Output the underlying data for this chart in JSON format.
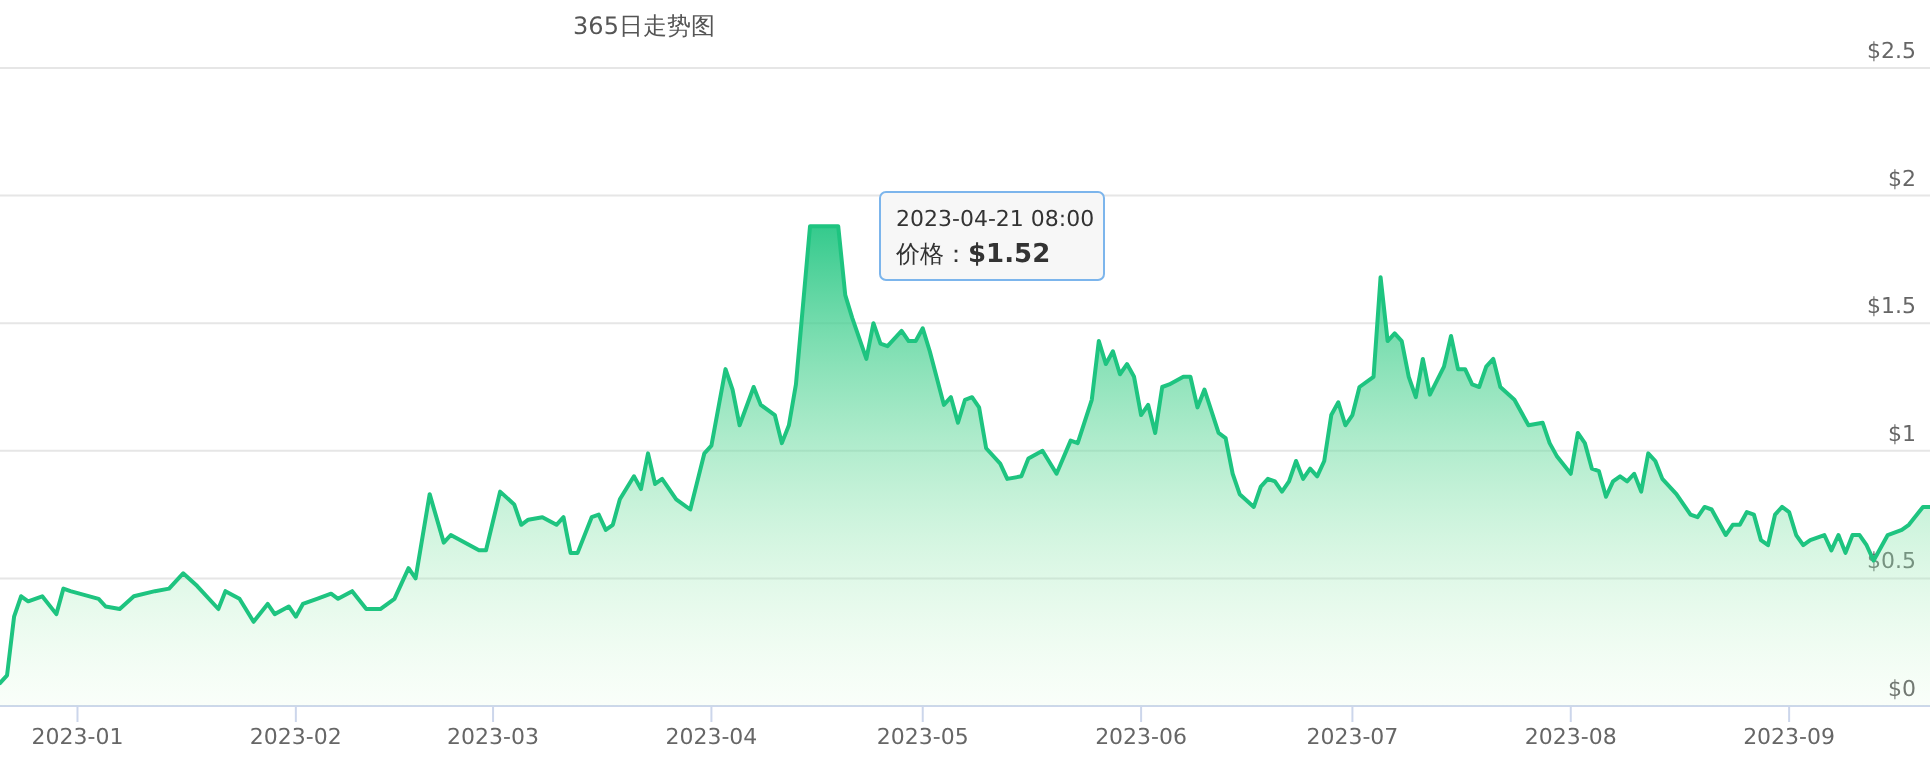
{
  "chart_data": {
    "type": "area",
    "title": "365日走势图",
    "color": "#1ec480",
    "grid": "y",
    "marker": "none",
    "line_style": "solid",
    "xlim": [
      "2022-12-21",
      "2023-09-21"
    ],
    "ylim": [
      0,
      2.5
    ],
    "yticks": [
      {
        "value": 0,
        "label": "$0"
      },
      {
        "value": 0.5,
        "label": "$0.5"
      },
      {
        "value": 1,
        "label": "$1"
      },
      {
        "value": 1.5,
        "label": "$1.5"
      },
      {
        "value": 2,
        "label": "$2"
      },
      {
        "value": 2.5,
        "label": "$2.5"
      }
    ],
    "xticks": [
      {
        "value": "2023-01-01",
        "label": "2023-01"
      },
      {
        "value": "2023-02-01",
        "label": "2023-02"
      },
      {
        "value": "2023-03-01",
        "label": "2023-03"
      },
      {
        "value": "2023-04-01",
        "label": "2023-04"
      },
      {
        "value": "2023-05-01",
        "label": "2023-05"
      },
      {
        "value": "2023-06-01",
        "label": "2023-06"
      },
      {
        "value": "2023-07-01",
        "label": "2023-07"
      },
      {
        "value": "2023-08-01",
        "label": "2023-08"
      },
      {
        "value": "2023-09-01",
        "label": "2023-09"
      }
    ],
    "annotations": [
      "2023-04-21 08:00",
      "价格：**$1.52**"
    ],
    "x": [
      "2022-12-21",
      "2022-12-22",
      "2022-12-23",
      "2022-12-24",
      "2022-12-25",
      "2022-12-27",
      "2022-12-29",
      "2022-12-30",
      "2022-12-31",
      "2023-01-04",
      "2023-01-05",
      "2023-01-07",
      "2023-01-09",
      "2023-01-12",
      "2023-01-14",
      "2023-01-16",
      "2023-01-18",
      "2023-01-21",
      "2023-01-22",
      "2023-01-24",
      "2023-01-26",
      "2023-01-28",
      "2023-01-29",
      "2023-01-31",
      "2023-02-01",
      "2023-02-02",
      "2023-02-04",
      "2023-02-06",
      "2023-02-07",
      "2023-02-09",
      "2023-02-11",
      "2023-02-13",
      "2023-02-15",
      "2023-02-17",
      "2023-02-18",
      "2023-02-20",
      "2023-02-22",
      "2023-02-23",
      "2023-02-27",
      "2023-02-28",
      "2023-03-02",
      "2023-03-04",
      "2023-03-05",
      "2023-03-06",
      "2023-03-08",
      "2023-03-10",
      "2023-03-11",
      "2023-03-12",
      "2023-03-13",
      "2023-03-15",
      "2023-03-16",
      "2023-03-17",
      "2023-03-18",
      "2023-03-19",
      "2023-03-21",
      "2023-03-22",
      "2023-03-23",
      "2023-03-24",
      "2023-03-25",
      "2023-03-27",
      "2023-03-29",
      "2023-03-31",
      "2023-04-01",
      "2023-04-03",
      "2023-04-04",
      "2023-04-05",
      "2023-04-07",
      "2023-04-08",
      "2023-04-10",
      "2023-04-11",
      "2023-04-12",
      "2023-04-13",
      "2023-04-15",
      "2023-04-19",
      "2023-04-20",
      "2023-04-21",
      "2023-04-23",
      "2023-04-24",
      "2023-04-25",
      "2023-04-26",
      "2023-04-28",
      "2023-04-29",
      "2023-04-30",
      "2023-05-01",
      "2023-05-02",
      "2023-05-04",
      "2023-05-05",
      "2023-05-06",
      "2023-05-07",
      "2023-05-08",
      "2023-05-09",
      "2023-05-10",
      "2023-05-12",
      "2023-05-13",
      "2023-05-15",
      "2023-05-16",
      "2023-05-18",
      "2023-05-20",
      "2023-05-22",
      "2023-05-23",
      "2023-05-25",
      "2023-05-26",
      "2023-05-27",
      "2023-05-28",
      "2023-05-29",
      "2023-05-30",
      "2023-05-31",
      "2023-06-01",
      "2023-06-02",
      "2023-06-03",
      "2023-06-04",
      "2023-06-05",
      "2023-06-07",
      "2023-06-08",
      "2023-06-09",
      "2023-06-10",
      "2023-06-12",
      "2023-06-13",
      "2023-06-14",
      "2023-06-15",
      "2023-06-17",
      "2023-06-18",
      "2023-06-19",
      "2023-06-20",
      "2023-06-21",
      "2023-06-22",
      "2023-06-23",
      "2023-06-24",
      "2023-06-25",
      "2023-06-26",
      "2023-06-27",
      "2023-06-28",
      "2023-06-29",
      "2023-06-30",
      "2023-07-01",
      "2023-07-02",
      "2023-07-04",
      "2023-07-05",
      "2023-07-06",
      "2023-07-07",
      "2023-07-08",
      "2023-07-09",
      "2023-07-10",
      "2023-07-11",
      "2023-07-12",
      "2023-07-14",
      "2023-07-15",
      "2023-07-16",
      "2023-07-17",
      "2023-07-18",
      "2023-07-19",
      "2023-07-20",
      "2023-07-21",
      "2023-07-22",
      "2023-07-24",
      "2023-07-26",
      "2023-07-28",
      "2023-07-29",
      "2023-07-30",
      "2023-08-01",
      "2023-08-02",
      "2023-08-03",
      "2023-08-04",
      "2023-08-05",
      "2023-08-06",
      "2023-08-07",
      "2023-08-08",
      "2023-08-09",
      "2023-08-10",
      "2023-08-11",
      "2023-08-12",
      "2023-08-13",
      "2023-08-14",
      "2023-08-16",
      "2023-08-18",
      "2023-08-19",
      "2023-08-20",
      "2023-08-21",
      "2023-08-23",
      "2023-08-24",
      "2023-08-25",
      "2023-08-26",
      "2023-08-27",
      "2023-08-28",
      "2023-08-29",
      "2023-08-30",
      "2023-08-31",
      "2023-09-01",
      "2023-09-02",
      "2023-09-03",
      "2023-09-04",
      "2023-09-05",
      "2023-09-06",
      "2023-09-07",
      "2023-09-08",
      "2023-09-09",
      "2023-09-10",
      "2023-09-11",
      "2023-09-12",
      "2023-09-13",
      "2023-09-15",
      "2023-09-17",
      "2023-09-18",
      "2023-09-20",
      "2023-09-21"
    ],
    "values": [
      0.09,
      0.12,
      0.35,
      0.43,
      0.41,
      0.43,
      0.36,
      0.46,
      0.45,
      0.42,
      0.39,
      0.38,
      0.43,
      0.45,
      0.46,
      0.52,
      0.47,
      0.38,
      0.45,
      0.42,
      0.33,
      0.4,
      0.36,
      0.39,
      0.35,
      0.4,
      0.42,
      0.44,
      0.42,
      0.45,
      0.38,
      0.38,
      0.42,
      0.54,
      0.5,
      0.83,
      0.64,
      0.67,
      0.61,
      0.61,
      0.84,
      0.79,
      0.71,
      0.73,
      0.74,
      0.71,
      0.74,
      0.6,
      0.6,
      0.74,
      0.75,
      0.69,
      0.71,
      0.81,
      0.9,
      0.85,
      0.99,
      0.87,
      0.89,
      0.81,
      0.77,
      0.99,
      1.02,
      1.32,
      1.24,
      1.1,
      1.25,
      1.18,
      1.14,
      1.03,
      1.1,
      1.26,
      1.88,
      1.88,
      1.61,
      1.52,
      1.36,
      1.5,
      1.42,
      1.41,
      1.47,
      1.43,
      1.43,
      1.48,
      1.39,
      1.18,
      1.21,
      1.11,
      1.2,
      1.21,
      1.17,
      1.01,
      0.95,
      0.89,
      0.9,
      0.97,
      1.0,
      0.91,
      1.04,
      1.03,
      1.2,
      1.43,
      1.34,
      1.39,
      1.3,
      1.34,
      1.29,
      1.14,
      1.18,
      1.07,
      1.25,
      1.26,
      1.29,
      1.29,
      1.17,
      1.24,
      1.07,
      1.05,
      0.91,
      0.83,
      0.78,
      0.86,
      0.89,
      0.88,
      0.84,
      0.88,
      0.96,
      0.89,
      0.93,
      0.9,
      0.96,
      1.14,
      1.19,
      1.1,
      1.14,
      1.25,
      1.29,
      1.68,
      1.43,
      1.46,
      1.43,
      1.29,
      1.21,
      1.36,
      1.22,
      1.33,
      1.45,
      1.32,
      1.32,
      1.26,
      1.25,
      1.33,
      1.36,
      1.25,
      1.2,
      1.1,
      1.11,
      1.03,
      0.98,
      0.91,
      1.07,
      1.03,
      0.93,
      0.92,
      0.82,
      0.88,
      0.9,
      0.88,
      0.91,
      0.84,
      0.99,
      0.96,
      0.89,
      0.83,
      0.75,
      0.74,
      0.78,
      0.77,
      0.67,
      0.71,
      0.71,
      0.76,
      0.75,
      0.65,
      0.63,
      0.75,
      0.78,
      0.76,
      0.67,
      0.63,
      0.65,
      0.66,
      0.67,
      0.61,
      0.67,
      0.6,
      0.67,
      0.67,
      0.63,
      0.57,
      0.67,
      0.69,
      0.71,
      0.78,
      0.78
    ]
  }
}
